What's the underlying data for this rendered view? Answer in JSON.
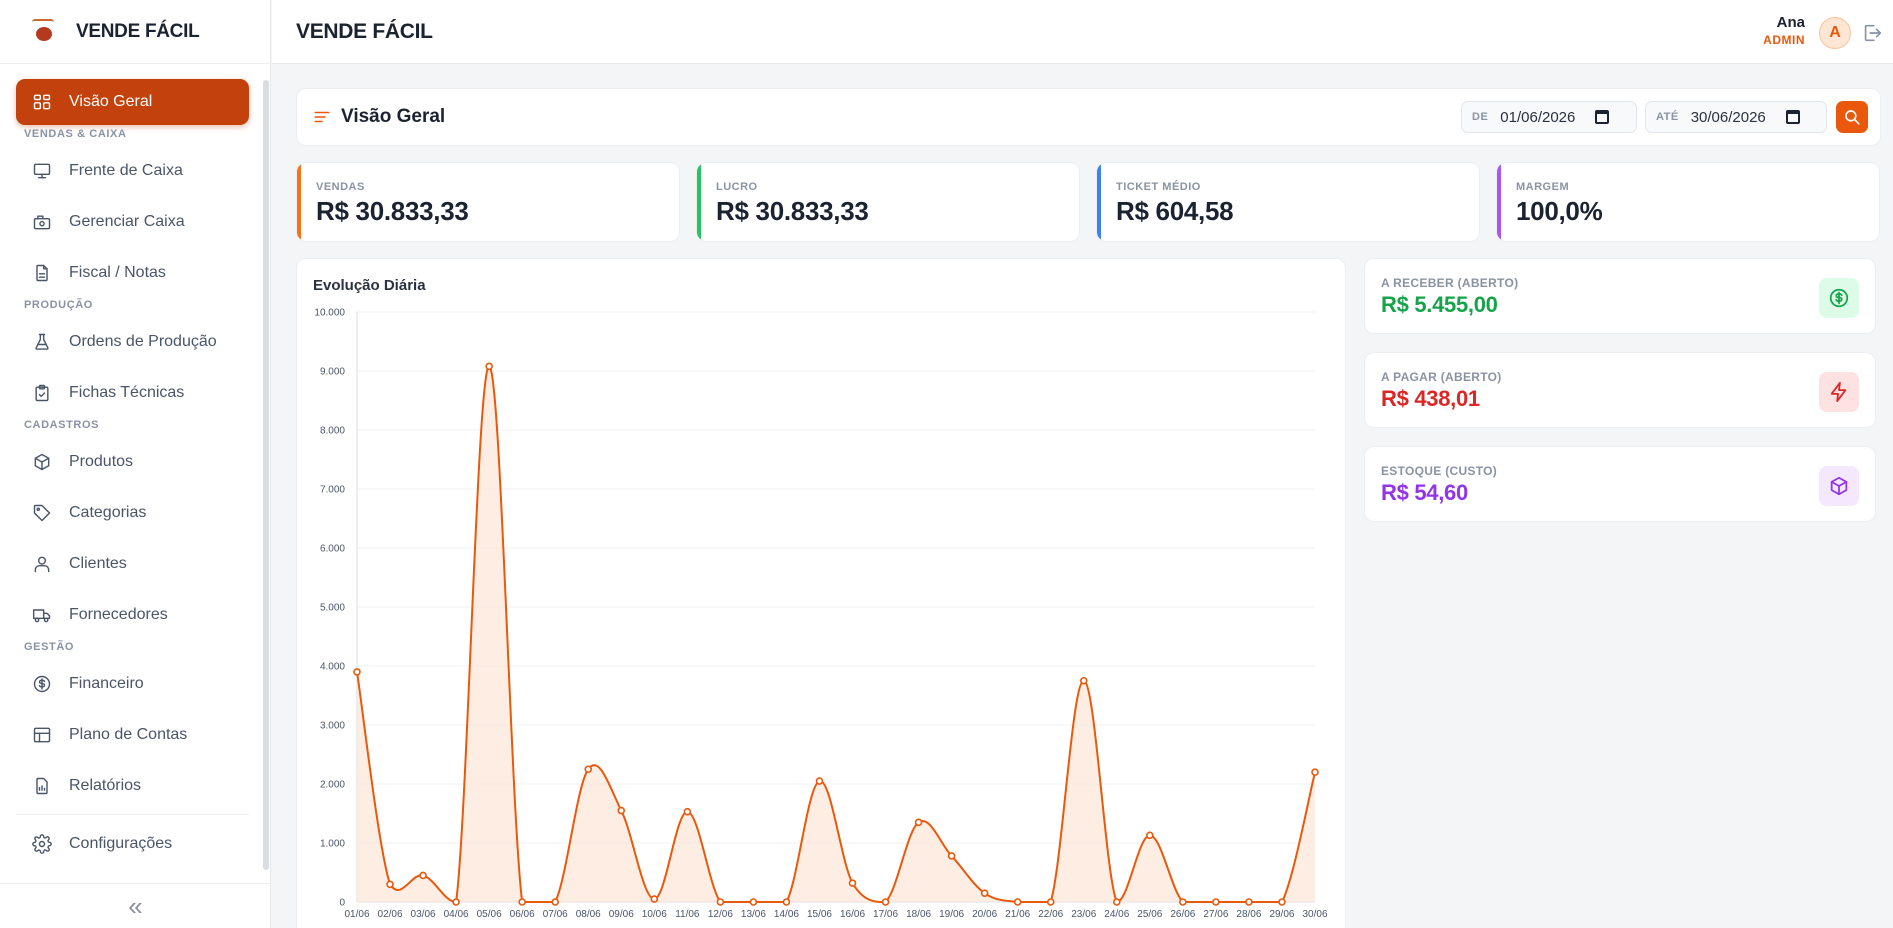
{
  "app": {
    "name": "VENDE FÁCIL"
  },
  "header": {
    "title": "VENDE FÁCIL",
    "user_name": "Ana",
    "user_role": "ADMIN",
    "avatar_letter": "A"
  },
  "sidebar": {
    "items": [
      {
        "label": "Visão Geral",
        "icon": "dashboard-icon",
        "active": true
      },
      {
        "section": "VENDAS & CAIXA"
      },
      {
        "label": "Frente de Caixa",
        "icon": "monitor-icon"
      },
      {
        "label": "Gerenciar Caixa",
        "icon": "cash-register-icon"
      },
      {
        "label": "Fiscal / Notas",
        "icon": "file-text-icon"
      },
      {
        "section": "PRODUÇÃO"
      },
      {
        "label": "Ordens de Produção",
        "icon": "flask-icon"
      },
      {
        "label": "Fichas Técnicas",
        "icon": "clipboard-check-icon"
      },
      {
        "section": "CADASTROS"
      },
      {
        "label": "Produtos",
        "icon": "box-icon"
      },
      {
        "label": "Categorias",
        "icon": "tag-icon"
      },
      {
        "label": "Clientes",
        "icon": "user-icon"
      },
      {
        "label": "Fornecedores",
        "icon": "truck-icon"
      },
      {
        "section": "GESTÃO"
      },
      {
        "label": "Financeiro",
        "icon": "dollar-circle-icon"
      },
      {
        "label": "Plano de Contas",
        "icon": "table-icon"
      },
      {
        "label": "Relatórios",
        "icon": "report-icon"
      },
      {
        "separator": true
      },
      {
        "label": "Configurações",
        "icon": "gear-icon"
      }
    ],
    "collapse_glyph": "«"
  },
  "filter": {
    "title": "Visão Geral",
    "from_label": "DE",
    "from_value": "01/06/2026",
    "to_label": "ATÉ",
    "to_value": "30/06/2026"
  },
  "kpis": [
    {
      "label": "VENDAS",
      "value": "R$ 30.833,33",
      "color": "#f97316"
    },
    {
      "label": "LUCRO",
      "value": "R$ 30.833,33",
      "color": "#22c55e"
    },
    {
      "label": "TICKET MÉDIO",
      "value": "R$ 604,58",
      "color": "#3b82f6"
    },
    {
      "label": "MARGEM",
      "value": "100,0%",
      "color": "#a855f7"
    }
  ],
  "side_cards": [
    {
      "label": "A RECEBER (ABERTO)",
      "value": "R$ 5.455,00",
      "color": "#16a34a",
      "bg": "#dcfce7",
      "icon": "dollar-circle-icon"
    },
    {
      "label": "A PAGAR (ABERTO)",
      "value": "R$ 438,01",
      "color": "#dc2626",
      "bg": "#fee2e2",
      "icon": "lightning-icon"
    },
    {
      "label": "ESTOQUE (CUSTO)",
      "value": "R$ 54,60",
      "color": "#9333ea",
      "bg": "#f3e8ff",
      "icon": "box-icon"
    }
  ],
  "chart_data": {
    "type": "area",
    "title": "Evolução Diária",
    "x": [
      "01/06",
      "02/06",
      "03/06",
      "04/06",
      "05/06",
      "06/06",
      "07/06",
      "08/06",
      "09/06",
      "10/06",
      "11/06",
      "12/06",
      "13/06",
      "14/06",
      "15/06",
      "16/06",
      "17/06",
      "18/06",
      "19/06",
      "20/06",
      "21/06",
      "22/06",
      "23/06",
      "24/06",
      "25/06",
      "26/06",
      "27/06",
      "28/06",
      "29/06",
      "30/06"
    ],
    "values": [
      3900,
      300,
      450,
      0,
      9080,
      0,
      0,
      2250,
      1550,
      50,
      1530,
      0,
      0,
      0,
      2050,
      320,
      0,
      1350,
      780,
      150,
      0,
      0,
      3750,
      0,
      1130,
      0,
      0,
      0,
      0,
      2200
    ],
    "yticks": [
      "0",
      "1.000",
      "2.000",
      "3.000",
      "4.000",
      "5.000",
      "6.000",
      "7.000",
      "8.000",
      "9.000",
      "10.000"
    ],
    "ylim": [
      0,
      10000
    ],
    "grid": true,
    "color": "#ea580c",
    "fill": "#fde7d9"
  }
}
